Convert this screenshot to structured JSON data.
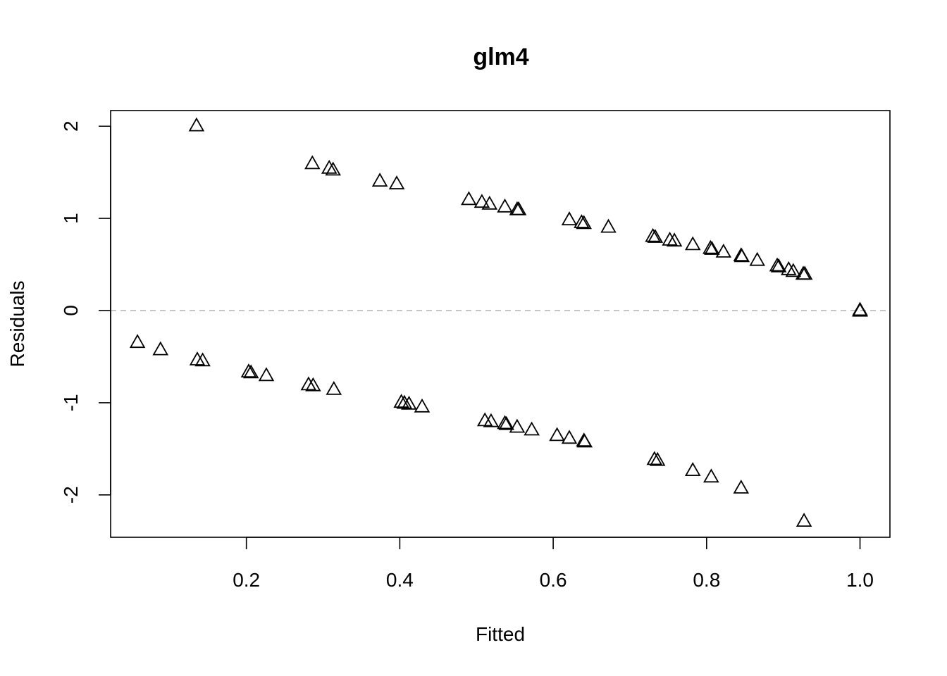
{
  "chart_data": {
    "type": "scatter",
    "title": "glm4",
    "xlabel": "Fitted",
    "ylabel": "Residuals",
    "xlim": [
      0.023,
      1.039
    ],
    "ylim": [
      -2.46,
      2.17
    ],
    "xticks": [
      0.2,
      0.4,
      0.6,
      0.8,
      1.0
    ],
    "xtick_labels": [
      "0.2",
      "0.4",
      "0.6",
      "0.8",
      "1.0"
    ],
    "yticks": [
      -2,
      -1,
      0,
      1,
      2
    ],
    "ytick_labels": [
      "-2",
      "-1",
      "0",
      "1",
      "2"
    ],
    "reference_line": {
      "y": 0,
      "style": "dashed",
      "color": "#bdbdbd"
    },
    "marker": "open-triangle",
    "marker_color": "#000000",
    "grid": false,
    "points": [
      {
        "x": 0.135,
        "y": 2.01
      },
      {
        "x": 0.286,
        "y": 1.6
      },
      {
        "x": 0.308,
        "y": 1.55
      },
      {
        "x": 0.313,
        "y": 1.53
      },
      {
        "x": 0.374,
        "y": 1.41
      },
      {
        "x": 0.396,
        "y": 1.38
      },
      {
        "x": 0.49,
        "y": 1.21
      },
      {
        "x": 0.507,
        "y": 1.18
      },
      {
        "x": 0.517,
        "y": 1.16
      },
      {
        "x": 0.537,
        "y": 1.13
      },
      {
        "x": 0.553,
        "y": 1.1
      },
      {
        "x": 0.555,
        "y": 1.1
      },
      {
        "x": 0.621,
        "y": 0.99
      },
      {
        "x": 0.637,
        "y": 0.96
      },
      {
        "x": 0.64,
        "y": 0.95
      },
      {
        "x": 0.672,
        "y": 0.91
      },
      {
        "x": 0.73,
        "y": 0.81
      },
      {
        "x": 0.733,
        "y": 0.8
      },
      {
        "x": 0.752,
        "y": 0.77
      },
      {
        "x": 0.758,
        "y": 0.76
      },
      {
        "x": 0.782,
        "y": 0.72
      },
      {
        "x": 0.805,
        "y": 0.68
      },
      {
        "x": 0.807,
        "y": 0.67
      },
      {
        "x": 0.822,
        "y": 0.64
      },
      {
        "x": 0.845,
        "y": 0.6
      },
      {
        "x": 0.846,
        "y": 0.59
      },
      {
        "x": 0.866,
        "y": 0.55
      },
      {
        "x": 0.892,
        "y": 0.49
      },
      {
        "x": 0.894,
        "y": 0.48
      },
      {
        "x": 0.907,
        "y": 0.45
      },
      {
        "x": 0.913,
        "y": 0.43
      },
      {
        "x": 0.926,
        "y": 0.4
      },
      {
        "x": 0.928,
        "y": 0.4
      },
      {
        "x": 1.0,
        "y": 0.01
      },
      {
        "x": 1.0,
        "y": 0.0
      },
      {
        "x": 0.058,
        "y": -0.34
      },
      {
        "x": 0.088,
        "y": -0.42
      },
      {
        "x": 0.136,
        "y": -0.53
      },
      {
        "x": 0.143,
        "y": -0.54
      },
      {
        "x": 0.203,
        "y": -0.66
      },
      {
        "x": 0.206,
        "y": -0.67
      },
      {
        "x": 0.226,
        "y": -0.7
      },
      {
        "x": 0.281,
        "y": -0.8
      },
      {
        "x": 0.287,
        "y": -0.81
      },
      {
        "x": 0.314,
        "y": -0.85
      },
      {
        "x": 0.402,
        "y": -0.99
      },
      {
        "x": 0.406,
        "y": -1.0
      },
      {
        "x": 0.412,
        "y": -1.01
      },
      {
        "x": 0.429,
        "y": -1.04
      },
      {
        "x": 0.511,
        "y": -1.19
      },
      {
        "x": 0.519,
        "y": -1.2
      },
      {
        "x": 0.537,
        "y": -1.22
      },
      {
        "x": 0.539,
        "y": -1.23
      },
      {
        "x": 0.553,
        "y": -1.26
      },
      {
        "x": 0.572,
        "y": -1.29
      },
      {
        "x": 0.605,
        "y": -1.35
      },
      {
        "x": 0.621,
        "y": -1.38
      },
      {
        "x": 0.64,
        "y": -1.41
      },
      {
        "x": 0.641,
        "y": -1.42
      },
      {
        "x": 0.732,
        "y": -1.61
      },
      {
        "x": 0.736,
        "y": -1.62
      },
      {
        "x": 0.782,
        "y": -1.73
      },
      {
        "x": 0.806,
        "y": -1.8
      },
      {
        "x": 0.845,
        "y": -1.92
      },
      {
        "x": 0.927,
        "y": -2.28
      }
    ]
  }
}
